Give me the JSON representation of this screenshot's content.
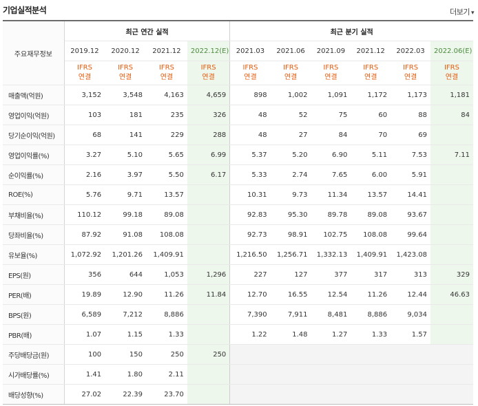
{
  "title": "기업실적분석",
  "more_label": "더보기",
  "more_icon": "chevron-down-icon",
  "first_col_header": "주요재무정보",
  "groups": [
    {
      "label": "최근 연간 실적"
    },
    {
      "label": "최근 분기 실적"
    }
  ],
  "annual_periods": [
    "2019.12",
    "2020.12",
    "2021.12",
    "2022.12(E)"
  ],
  "quarter_periods": [
    "2021.03",
    "2021.06",
    "2021.09",
    "2021.12",
    "2022.03",
    "2022.06(E)"
  ],
  "unit_line1": "IFRS",
  "unit_line2": "연결",
  "rows": [
    {
      "label": "매출액(억원)",
      "values": [
        "3,152",
        "3,548",
        "4,163",
        "4,659",
        "898",
        "1,002",
        "1,091",
        "1,172",
        "1,173",
        "1,181"
      ]
    },
    {
      "label": "영업이익(억원)",
      "values": [
        "103",
        "181",
        "235",
        "326",
        "48",
        "52",
        "75",
        "60",
        "88",
        "84"
      ]
    },
    {
      "label": "당기순이익(억원)",
      "values": [
        "68",
        "141",
        "229",
        "288",
        "48",
        "27",
        "84",
        "70",
        "69",
        ""
      ]
    },
    {
      "label": "영업이익률(%)",
      "values": [
        "3.27",
        "5.10",
        "5.65",
        "6.99",
        "5.37",
        "5.20",
        "6.90",
        "5.11",
        "7.53",
        "7.11"
      ]
    },
    {
      "label": "순이익률(%)",
      "values": [
        "2.16",
        "3.97",
        "5.50",
        "6.17",
        "5.33",
        "2.74",
        "7.65",
        "6.00",
        "5.91",
        ""
      ]
    },
    {
      "label": "ROE(%)",
      "values": [
        "5.76",
        "9.71",
        "13.57",
        "",
        "10.31",
        "9.73",
        "11.34",
        "13.57",
        "14.41",
        ""
      ]
    },
    {
      "label": "부채비율(%)",
      "values": [
        "110.12",
        "99.18",
        "89.08",
        "",
        "92.83",
        "95.30",
        "89.78",
        "89.08",
        "93.67",
        ""
      ]
    },
    {
      "label": "당좌비율(%)",
      "values": [
        "87.92",
        "91.08",
        "108.08",
        "",
        "92.73",
        "98.91",
        "102.75",
        "108.08",
        "99.64",
        ""
      ]
    },
    {
      "label": "유보율(%)",
      "values": [
        "1,072.92",
        "1,201.26",
        "1,409.91",
        "",
        "1,216.50",
        "1,256.71",
        "1,332.13",
        "1,409.91",
        "1,423.08",
        ""
      ]
    },
    {
      "label": "EPS(원)",
      "values": [
        "356",
        "644",
        "1,053",
        "1,296",
        "227",
        "127",
        "377",
        "317",
        "313",
        "329"
      ]
    },
    {
      "label": "PER(배)",
      "values": [
        "19.89",
        "12.90",
        "11.26",
        "11.84",
        "12.70",
        "16.55",
        "12.54",
        "11.26",
        "12.44",
        "46.63"
      ]
    },
    {
      "label": "BPS(원)",
      "values": [
        "6,589",
        "7,212",
        "8,886",
        "",
        "7,390",
        "7,911",
        "8,481",
        "8,886",
        "9,034",
        ""
      ]
    },
    {
      "label": "PBR(배)",
      "values": [
        "1.07",
        "1.15",
        "1.33",
        "",
        "1.22",
        "1.48",
        "1.27",
        "1.33",
        "1.57",
        ""
      ]
    },
    {
      "label": "주당배당금(원)",
      "values": [
        "100",
        "150",
        "250",
        "250",
        "",
        "",
        "",
        "",
        "",
        ""
      ]
    },
    {
      "label": "시가배당률(%)",
      "values": [
        "1.41",
        "1.80",
        "2.11",
        "",
        "",
        "",
        "",
        "",
        "",
        ""
      ]
    },
    {
      "label": "배당성향(%)",
      "values": [
        "27.02",
        "22.39",
        "23.70",
        "",
        "",
        "",
        "",
        "",
        "",
        ""
      ]
    }
  ]
}
